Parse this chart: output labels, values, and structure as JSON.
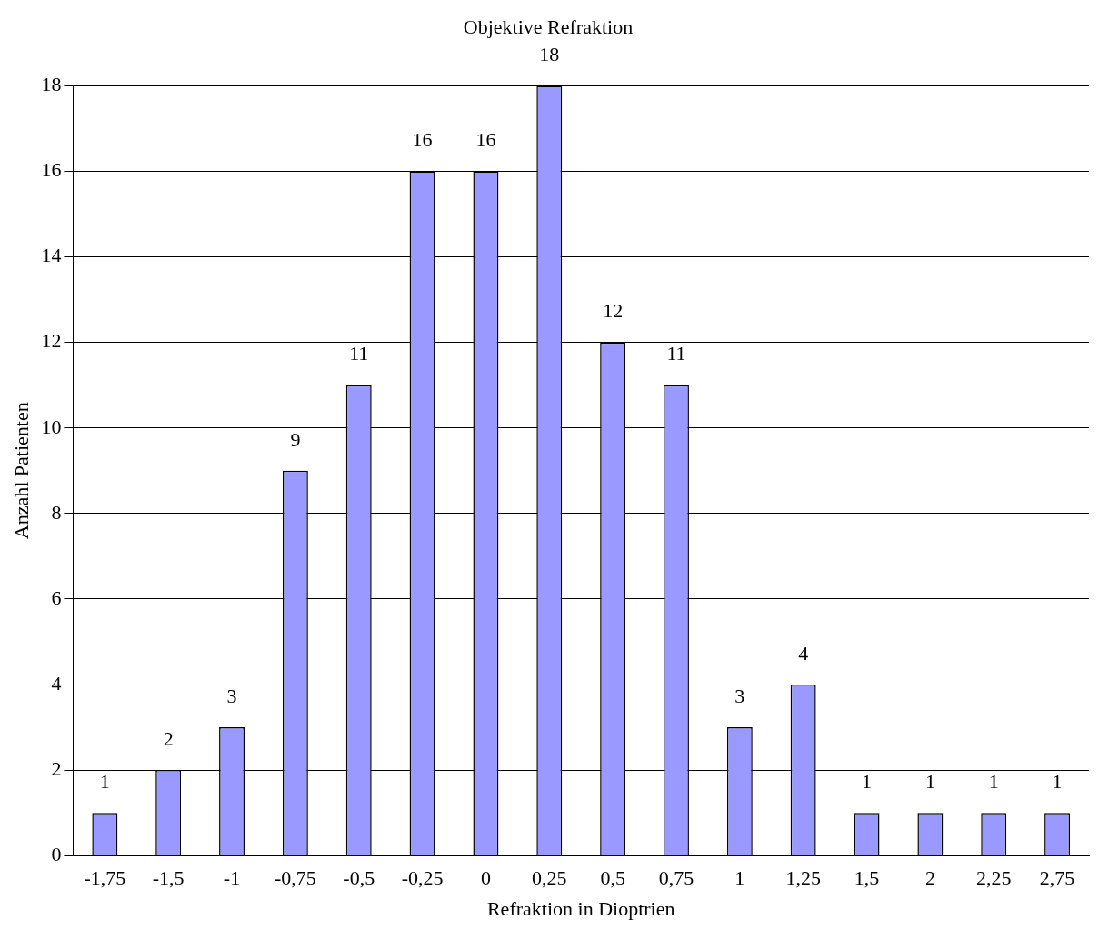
{
  "chart_data": {
    "type": "bar",
    "title": "Objektive Refraktion",
    "xlabel": "Refraktion in Dioptrien",
    "ylabel": "Anzahl Patienten",
    "categories": [
      "-1,75",
      "-1,5",
      "-1",
      "-0,75",
      "-0,5",
      "-0,25",
      "0",
      "0,25",
      "0,5",
      "0,75",
      "1",
      "1,25",
      "1,5",
      "2",
      "2,25",
      "2,75"
    ],
    "values": [
      1,
      2,
      3,
      9,
      11,
      16,
      16,
      18,
      12,
      11,
      3,
      4,
      1,
      1,
      1,
      1
    ],
    "color": "#9999ff",
    "ylim": [
      0,
      18
    ],
    "yticks": [
      0,
      2,
      4,
      6,
      8,
      10,
      12,
      14,
      16,
      18
    ],
    "grid": "y",
    "data_labels": true,
    "legend": false
  }
}
